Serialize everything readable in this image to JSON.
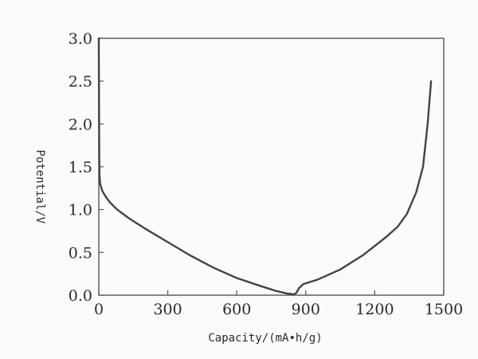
{
  "chart_data": {
    "type": "line",
    "title": "",
    "xlabel": "Capacity/(mA•h/g)",
    "ylabel": "Potential/V",
    "xlim": [
      0,
      1500
    ],
    "ylim": [
      0,
      3.0
    ],
    "x_ticks": [
      0,
      300,
      600,
      900,
      1200,
      1500
    ],
    "y_ticks": [
      0.0,
      0.5,
      1.0,
      1.5,
      2.0,
      2.5,
      3.0
    ],
    "x_tick_labels": [
      "0",
      "300",
      "600",
      "900",
      "1200",
      "1500"
    ],
    "y_tick_labels": [
      "0.0",
      "0.5",
      "1.0",
      "1.5",
      "2.0",
      "2.5",
      "3.0"
    ],
    "grid": false,
    "legend": "none",
    "line_color": "#444444",
    "series": [
      {
        "points": [
          [
            0,
            3.0
          ],
          [
            1,
            2.2
          ],
          [
            2,
            1.6
          ],
          [
            3,
            1.4
          ],
          [
            6,
            1.3
          ],
          [
            15,
            1.22
          ],
          [
            30,
            1.15
          ],
          [
            50,
            1.08
          ],
          [
            80,
            1.0
          ],
          [
            130,
            0.9
          ],
          [
            200,
            0.78
          ],
          [
            300,
            0.62
          ],
          [
            400,
            0.46
          ],
          [
            500,
            0.32
          ],
          [
            600,
            0.2
          ],
          [
            700,
            0.11
          ],
          [
            770,
            0.05
          ],
          [
            820,
            0.02
          ],
          [
            850,
            0.01
          ],
          [
            860,
            0.03
          ],
          [
            870,
            0.08
          ],
          [
            890,
            0.13
          ],
          [
            950,
            0.18
          ],
          [
            1050,
            0.3
          ],
          [
            1150,
            0.47
          ],
          [
            1250,
            0.68
          ],
          [
            1300,
            0.8
          ],
          [
            1340,
            0.95
          ],
          [
            1380,
            1.2
          ],
          [
            1410,
            1.5
          ],
          [
            1430,
            2.0
          ],
          [
            1445,
            2.5
          ]
        ]
      }
    ]
  }
}
